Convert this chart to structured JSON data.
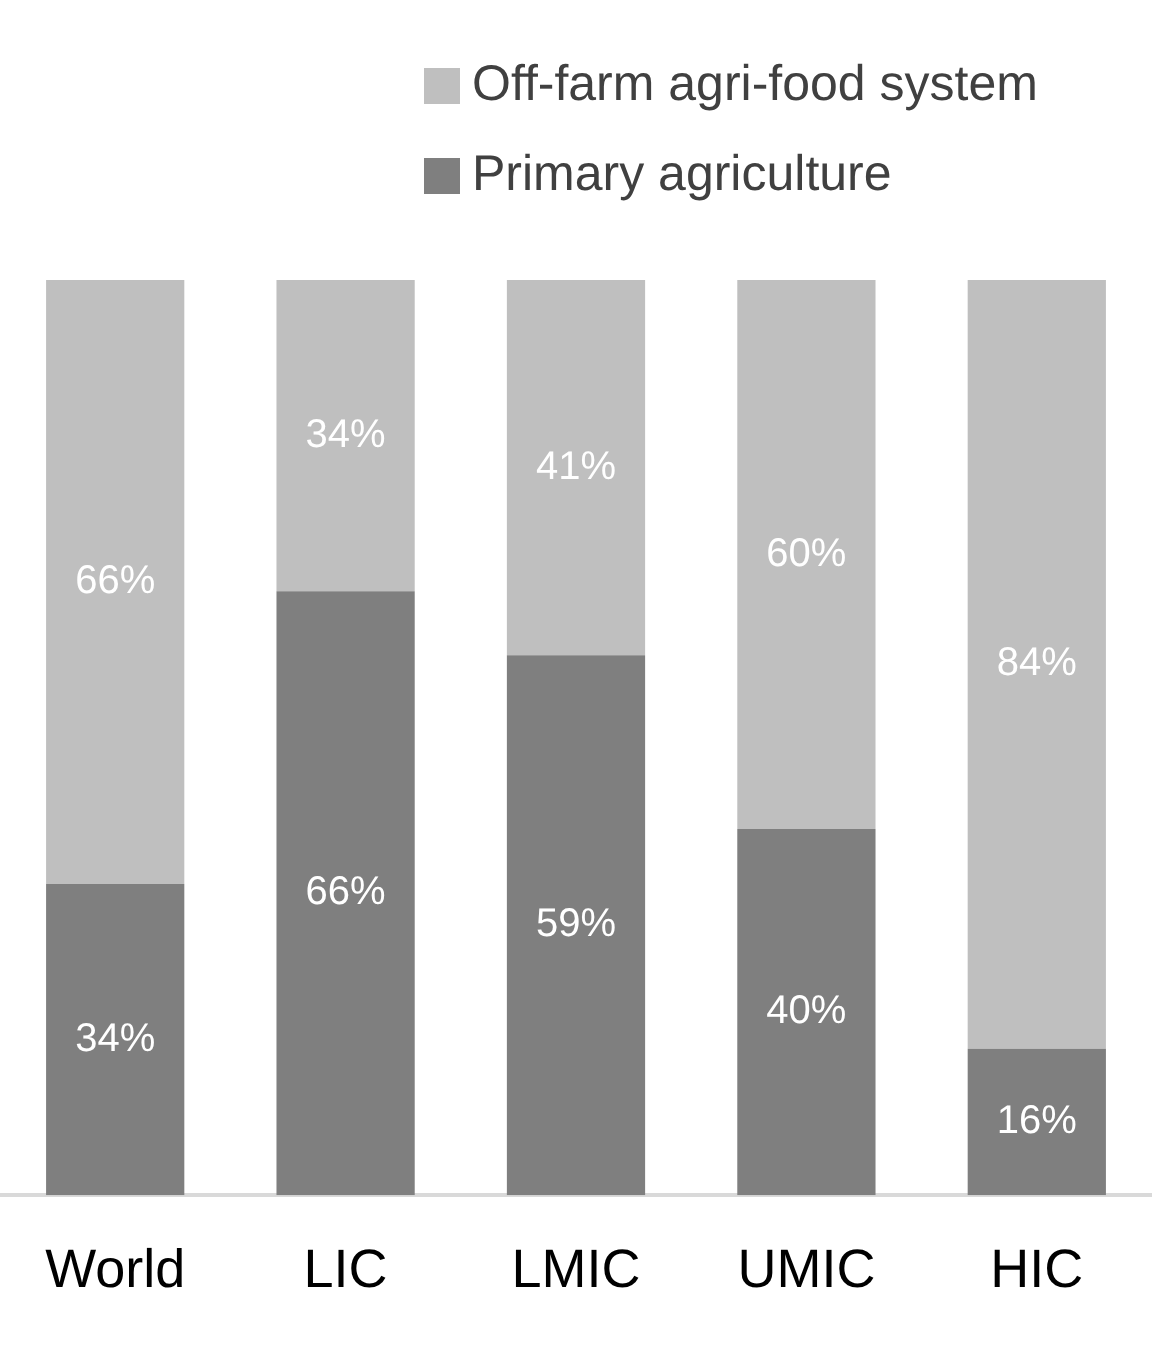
{
  "chart_data": {
    "type": "bar",
    "stacked": true,
    "categories": [
      "World",
      "LIC",
      "LMIC",
      "UMIC",
      "HIC"
    ],
    "series": [
      {
        "name": "Primary agriculture",
        "color": "#7f7f7f",
        "values": [
          34,
          66,
          59,
          40,
          16
        ],
        "value_labels": [
          "34%",
          "66%",
          "59%",
          "40%",
          "16%"
        ]
      },
      {
        "name": "Off-farm agri-food system",
        "color": "#bfbfbf",
        "values": [
          66,
          34,
          41,
          60,
          84
        ],
        "value_labels": [
          "66%",
          "34%",
          "41%",
          "60%",
          "84%"
        ]
      }
    ],
    "ylim": [
      0,
      100
    ],
    "tick_labels": "x",
    "legend": "top"
  }
}
